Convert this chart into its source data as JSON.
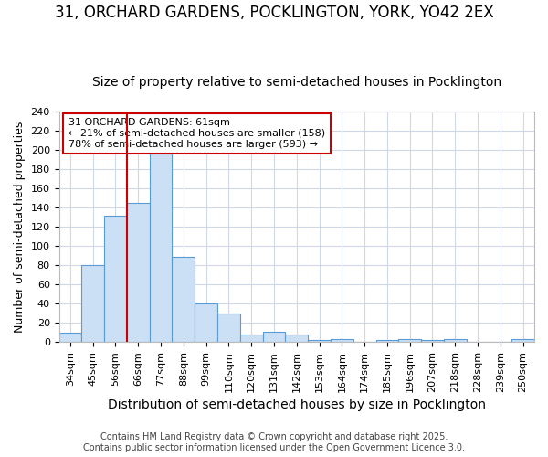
{
  "title": "31, ORCHARD GARDENS, POCKLINGTON, YORK, YO42 2EX",
  "subtitle": "Size of property relative to semi-detached houses in Pocklington",
  "xlabel": "Distribution of semi-detached houses by size in Pocklington",
  "ylabel": "Number of semi-detached properties",
  "categories": [
    "34sqm",
    "45sqm",
    "56sqm",
    "66sqm",
    "77sqm",
    "88sqm",
    "99sqm",
    "110sqm",
    "120sqm",
    "131sqm",
    "142sqm",
    "153sqm",
    "164sqm",
    "174sqm",
    "185sqm",
    "196sqm",
    "207sqm",
    "218sqm",
    "228sqm",
    "239sqm",
    "250sqm"
  ],
  "values": [
    10,
    80,
    131,
    145,
    200,
    89,
    40,
    30,
    8,
    11,
    8,
    2,
    3,
    0,
    2,
    3,
    2,
    3,
    0,
    0,
    3
  ],
  "bar_face_color": "#cce0f5",
  "bar_edge_color": "#5b9bd5",
  "background_color": "#ffffff",
  "plot_bg_color": "#ffffff",
  "grid_color": "#d0d8e8",
  "vline_x_index": 2.5,
  "vline_color": "#cc0000",
  "annotation_text": "31 ORCHARD GARDENS: 61sqm\n← 21% of semi-detached houses are smaller (158)\n78% of semi-detached houses are larger (593) →",
  "annotation_box_color": "#cc0000",
  "annotation_face_color": "#ffffff",
  "ylim": [
    0,
    240
  ],
  "yticks": [
    0,
    20,
    40,
    60,
    80,
    100,
    120,
    140,
    160,
    180,
    200,
    220,
    240
  ],
  "footer": "Contains HM Land Registry data © Crown copyright and database right 2025.\nContains public sector information licensed under the Open Government Licence 3.0.",
  "title_fontsize": 12,
  "subtitle_fontsize": 10,
  "xlabel_fontsize": 10,
  "ylabel_fontsize": 9,
  "tick_fontsize": 8,
  "footer_fontsize": 7
}
